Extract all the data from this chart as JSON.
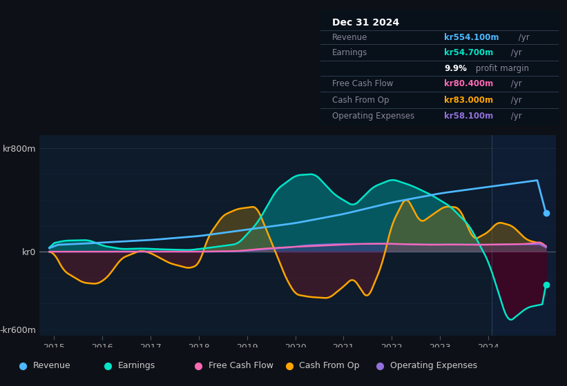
{
  "bg_color": "#0d1117",
  "plot_bg_color": "#0d1b2a",
  "ylim": [
    -650,
    900
  ],
  "xlim_start": 2014.7,
  "xlim_end": 2025.4,
  "xtick_years": [
    2015,
    2016,
    2017,
    2018,
    2019,
    2020,
    2021,
    2022,
    2023,
    2024
  ],
  "colors": {
    "revenue": "#4db8ff",
    "earnings": "#00e5c8",
    "free_cash_flow": "#ff69b4",
    "cash_from_op": "#ffa500",
    "operating_expenses": "#9370db"
  },
  "fill_colors": {
    "earnings_pos": "#008b8b",
    "earnings_neg": "#4a0020",
    "cop_pos": "#8b6914",
    "cop_neg": "#5a1a2a",
    "opex_pos": "#6b2fa0"
  },
  "info_box": {
    "title": "Dec 31 2024",
    "rows": [
      {
        "label": "Revenue",
        "value": "kr554.100m",
        "unit": " /yr",
        "color": "#4db8ff"
      },
      {
        "label": "Earnings",
        "value": "kr54.700m",
        "unit": " /yr",
        "color": "#00e5c8"
      },
      {
        "label": "",
        "value": "9.9%",
        "unit": " profit margin",
        "color": "#ffffff"
      },
      {
        "label": "Free Cash Flow",
        "value": "kr80.400m",
        "unit": " /yr",
        "color": "#ff69b4"
      },
      {
        "label": "Cash From Op",
        "value": "kr83.000m",
        "unit": " /yr",
        "color": "#ffa500"
      },
      {
        "label": "Operating Expenses",
        "value": "kr58.100m",
        "unit": " /yr",
        "color": "#9370db"
      }
    ]
  },
  "legend": [
    {
      "label": "Revenue",
      "color": "#4db8ff"
    },
    {
      "label": "Earnings",
      "color": "#00e5c8"
    },
    {
      "label": "Free Cash Flow",
      "color": "#ff69b4"
    },
    {
      "label": "Cash From Op",
      "color": "#ffa500"
    },
    {
      "label": "Operating Expenses",
      "color": "#9370db"
    }
  ]
}
